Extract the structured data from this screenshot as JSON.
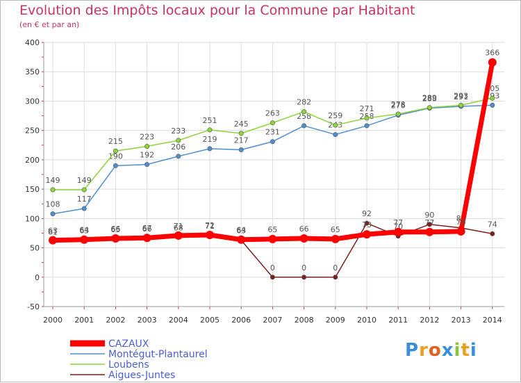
{
  "chart_data": {
    "type": "line",
    "title": "Evolution des Impôts locaux pour la Commune par Habitant",
    "subtitle": "(en € et par an)",
    "xlabel": "",
    "ylabel": "",
    "categories": [
      "2000",
      "2001",
      "2002",
      "2003",
      "2004",
      "2005",
      "2006",
      "2007",
      "2008",
      "2009",
      "2010",
      "2011",
      "2012",
      "2013",
      "2014"
    ],
    "ylim": [
      -50,
      400
    ],
    "yticks": [
      -50,
      0,
      50,
      100,
      150,
      200,
      250,
      300,
      350,
      400
    ],
    "grid": true,
    "legend_position": "bottom-left",
    "series": [
      {
        "name": "CAZAUX",
        "color": "#ff0000",
        "values": [
          63,
          64,
          66,
          67,
          71,
          72,
          64,
          65,
          66,
          65,
          73,
          77,
          77,
          78,
          366
        ]
      },
      {
        "name": "Montégut-Plantaurel",
        "color": "#4f8fd0",
        "values": [
          108,
          117,
          190,
          192,
          206,
          219,
          217,
          231,
          258,
          243,
          258,
          276,
          288,
          291,
          293
        ]
      },
      {
        "name": "Loubens",
        "color": "#8ed43c",
        "values": [
          149,
          149,
          215,
          223,
          233,
          251,
          245,
          263,
          282,
          259,
          271,
          278,
          289,
          293,
          305
        ]
      },
      {
        "name": "Aigues-Juntes",
        "color": "#7a2020",
        "values": [
          61,
          63,
          65,
          66,
          68,
          71,
          63,
          0,
          0,
          0,
          92,
          70,
          90,
          84,
          74
        ]
      }
    ]
  },
  "brand": {
    "letters": [
      "P",
      "r",
      "o",
      "x",
      "i",
      "t",
      "i"
    ],
    "colors": [
      "#3a8fd8",
      "#e8a020",
      "#e06020",
      "#3a8fd8",
      "#8bc43c",
      "#e8a020",
      "#3a8fd8"
    ]
  }
}
